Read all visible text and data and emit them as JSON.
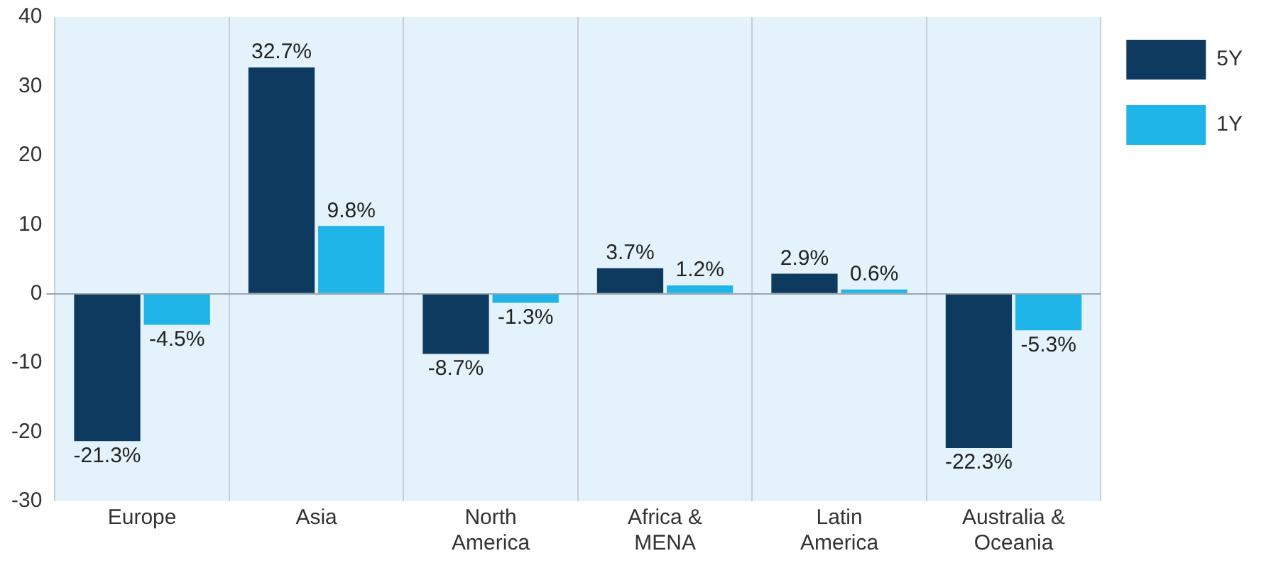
{
  "chart_data": {
    "type": "bar",
    "categories": [
      "Europe",
      "Asia",
      "North America",
      "Africa & MENA",
      "Latin America",
      "Australia & Oceania"
    ],
    "series": [
      {
        "name": "5Y",
        "color": "#0f3a5f",
        "values": [
          -21.3,
          32.7,
          -8.7,
          3.7,
          2.9,
          -22.3
        ],
        "value_labels": [
          "-21.3%",
          "32.7%",
          "-8.7%",
          "3.7%",
          "2.9%",
          "-22.3%"
        ]
      },
      {
        "name": "1Y",
        "color": "#1fb5e8",
        "values": [
          -4.5,
          9.8,
          -1.3,
          1.2,
          0.6,
          -5.3
        ],
        "value_labels": [
          "-4.5%",
          "9.8%",
          "-1.3%",
          "1.2%",
          "0.6%",
          "-5.3%"
        ]
      }
    ],
    "ylim": [
      -30,
      40
    ],
    "yticks": [
      -30,
      -20,
      -10,
      0,
      10,
      20,
      30,
      40
    ],
    "grid": "x",
    "legend": "top right"
  }
}
